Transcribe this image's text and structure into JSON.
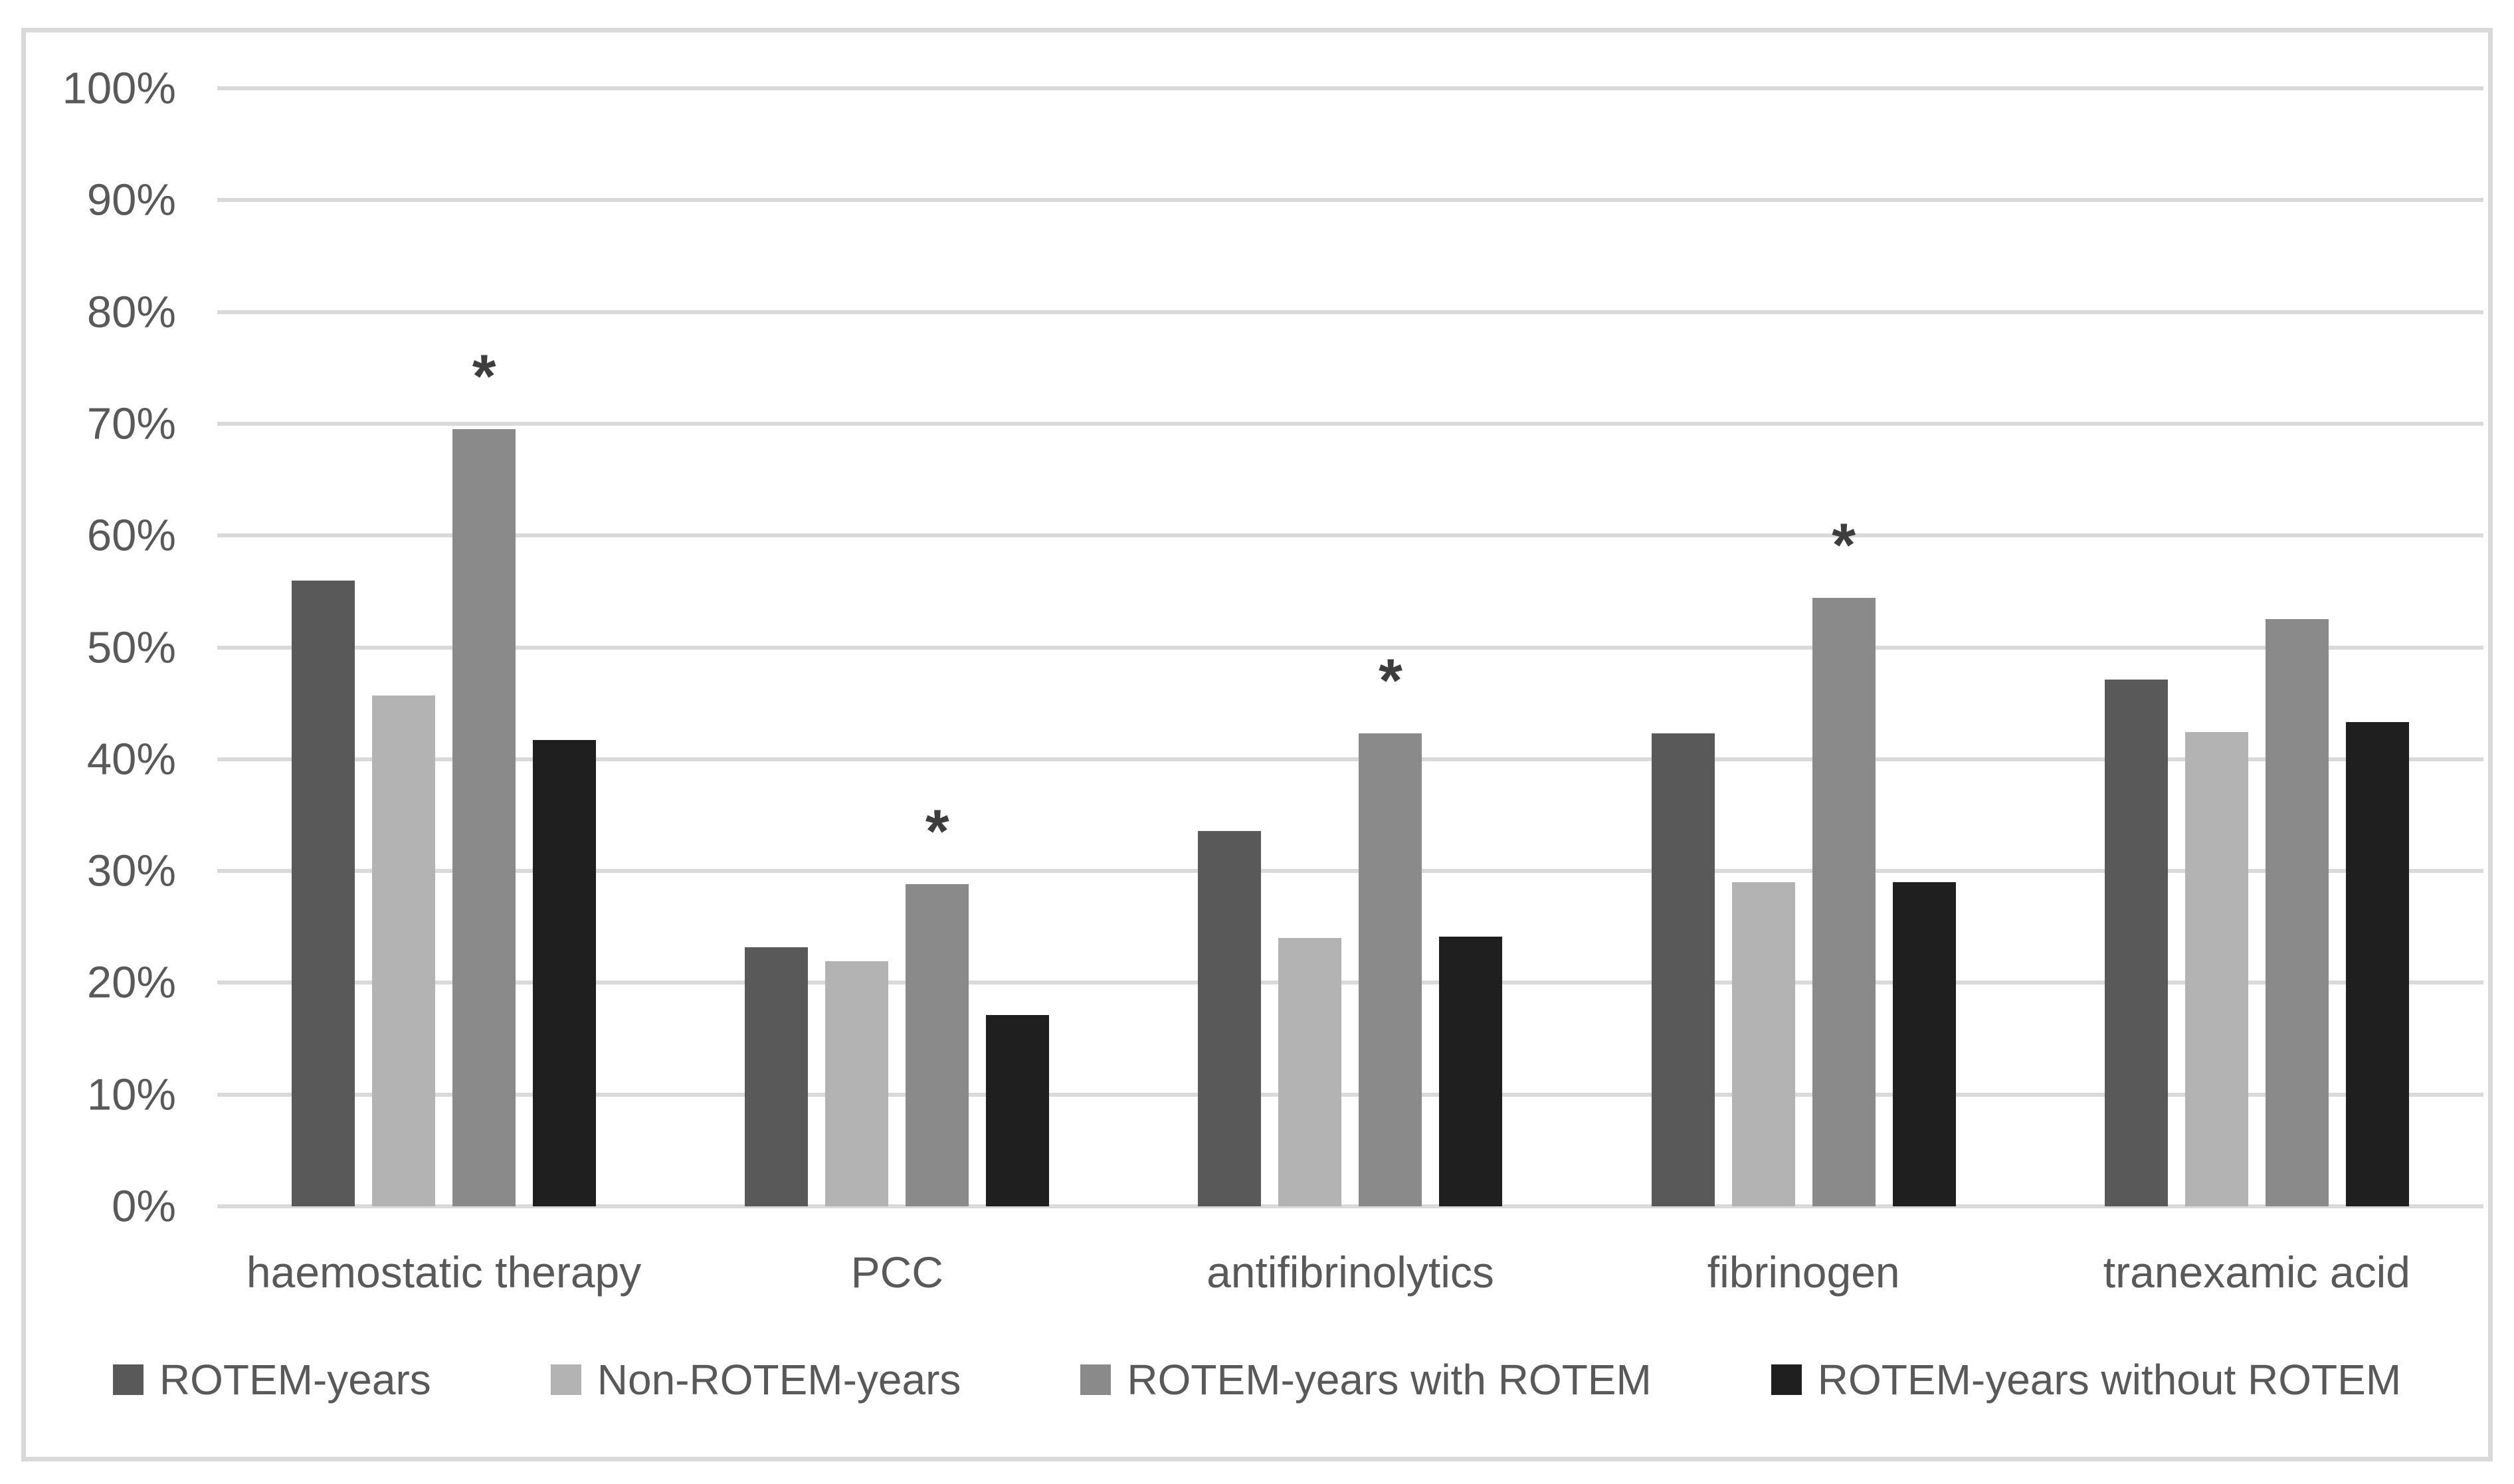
{
  "figure": {
    "background_color": "#ffffff",
    "frame_border_color": "#d9d9d9",
    "gridline_color": "#d9d9d9",
    "axis_text_color": "#595959",
    "significance_marker_color": "#3d3d3d"
  },
  "chart_data": {
    "type": "bar",
    "title": "",
    "xlabel": "",
    "ylabel": "",
    "categories": [
      "haemostatic therapy",
      "PCC",
      "antifibrinolytics",
      "fibrinogen",
      "tranexamic acid"
    ],
    "series": [
      {
        "name": "ROTEM-years",
        "color": "#595959",
        "values": [
          56.0,
          23.2,
          33.6,
          42.3,
          47.1
        ]
      },
      {
        "name": "Non-ROTEM-years",
        "color": "#b3b3b3",
        "values": [
          45.7,
          21.9,
          24.0,
          29.0,
          42.4
        ]
      },
      {
        "name": "ROTEM-years with ROTEM",
        "color": "#8a8a8a",
        "values": [
          69.5,
          28.8,
          42.3,
          54.4,
          52.5
        ]
      },
      {
        "name": "ROTEM-years without ROTEM",
        "color": "#1f1f1f",
        "values": [
          41.7,
          17.1,
          24.1,
          29.0,
          43.3
        ]
      }
    ],
    "significance_markers": {
      "symbol": "*",
      "series": "ROTEM-years with ROTEM",
      "categories": [
        "haemostatic therapy",
        "PCC",
        "antifibrinolytics",
        "fibrinogen"
      ]
    },
    "ylim": [
      0,
      100
    ],
    "ytick_labels": [
      "0%",
      "10%",
      "20%",
      "30%",
      "40%",
      "50%",
      "60%",
      "70%",
      "80%",
      "90%",
      "100%"
    ],
    "grid": "horizontal",
    "legend_position": "bottom"
  }
}
